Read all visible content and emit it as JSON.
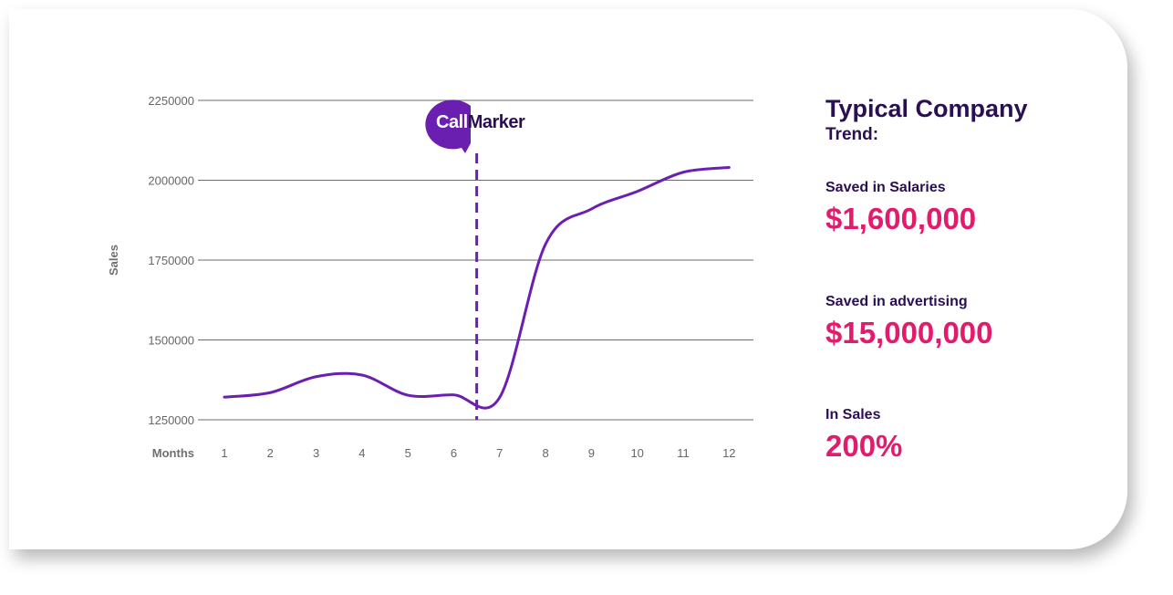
{
  "chart_data": {
    "type": "line",
    "xlabel": "Months",
    "ylabel": "Sales",
    "x": [
      1,
      2,
      3,
      4,
      5,
      6,
      7,
      8,
      9,
      10,
      11,
      12
    ],
    "x_ticks": [
      "1",
      "2",
      "3",
      "4",
      "5",
      "6",
      "7",
      "8",
      "9",
      "10",
      "11",
      "12"
    ],
    "y_ticks": [
      "2250000",
      "2000000",
      "1750000",
      "1500000",
      "1250000"
    ],
    "ylim": [
      1250000,
      2250000
    ],
    "grid": true,
    "series": [
      {
        "values": [
          1321000,
          1335000,
          1385000,
          1390000,
          1327000,
          1328000,
          1320000,
          1800000,
          1910000,
          1965000,
          2025000,
          2040000
        ]
      }
    ],
    "annotations": [
      {
        "type": "vertical-dashed-line",
        "x": 6.5,
        "label": "CallMarker"
      }
    ],
    "line_color": "#6a1fb0"
  },
  "logo": {
    "part1": "Call",
    "part2": "Marker",
    "color": "#6a1fb0"
  },
  "panel": {
    "title": "Typical Company",
    "subtitle": "Trend:",
    "stats": [
      {
        "label": "Saved in Salaries",
        "value": "$1,600,000"
      },
      {
        "label": "Saved in advertising",
        "value": "$15,000,000"
      },
      {
        "label": "In Sales",
        "value": "200%"
      }
    ],
    "title_color": "#2a0f52",
    "value_color": "#e31b6d"
  }
}
